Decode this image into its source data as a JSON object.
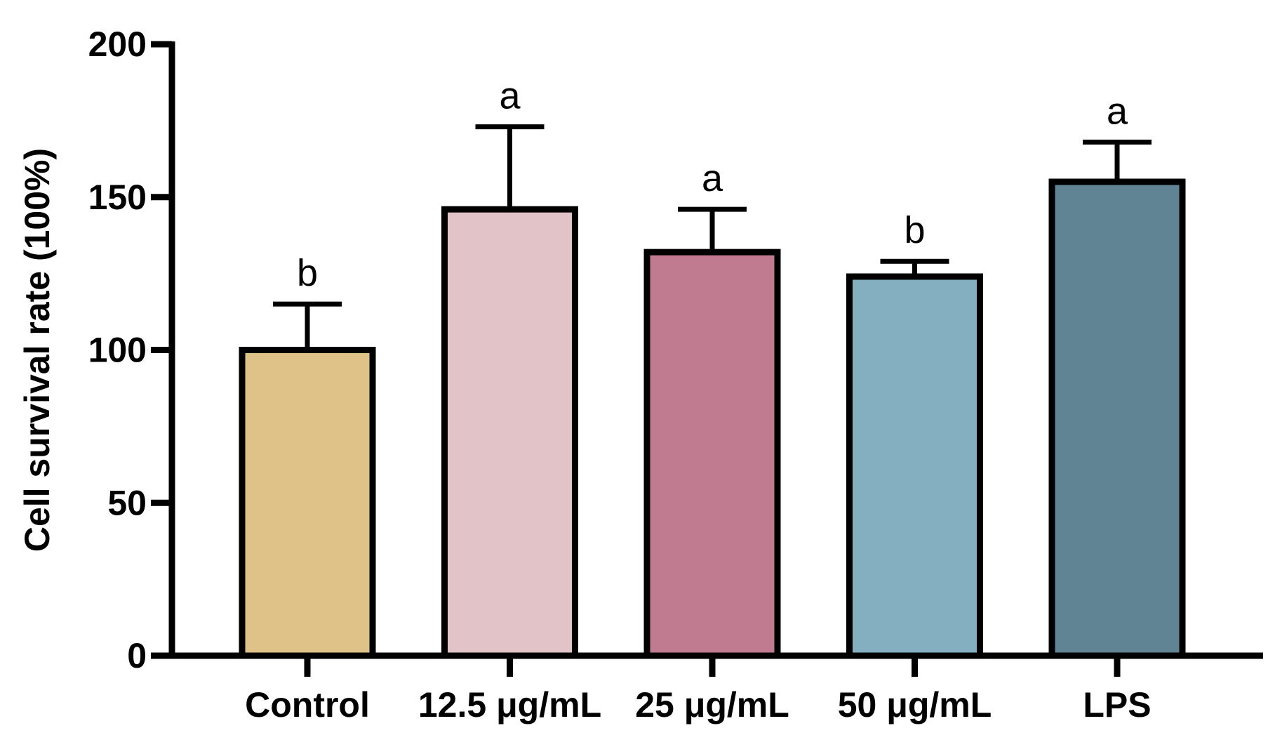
{
  "chart_data": {
    "type": "bar",
    "title": "",
    "xlabel": "",
    "ylabel": "Cell survival rate (100%)",
    "ylim": [
      0,
      200
    ],
    "yticks": [
      0,
      50,
      100,
      150,
      200
    ],
    "categories": [
      "Control",
      "12.5 μg/mL",
      "25 μg/mL",
      "50 μg/mL",
      "LPS"
    ],
    "values": [
      100,
      146,
      132,
      124,
      155
    ],
    "errors": [
      15,
      27,
      14,
      5,
      13
    ],
    "significance": [
      "b",
      "a",
      "a",
      "b",
      "a"
    ],
    "colors": [
      "#dfc287",
      "#e2c3c8",
      "#c07b91",
      "#83afc0",
      "#608494"
    ]
  }
}
